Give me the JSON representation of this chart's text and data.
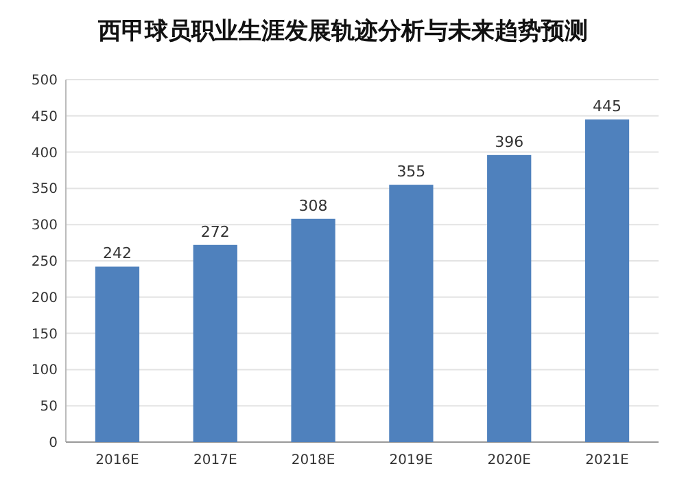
{
  "chart_data": {
    "type": "bar",
    "title": "西甲球员职业生涯发展轨迹分析与未来趋势预测",
    "categories": [
      "2016E",
      "2017E",
      "2018E",
      "2019E",
      "2020E",
      "2021E"
    ],
    "values": [
      242,
      272,
      308,
      355,
      396,
      445
    ],
    "color": "#4f81bd",
    "ylim": [
      0,
      500
    ],
    "yticks": [
      0,
      50,
      100,
      150,
      200,
      250,
      300,
      350,
      400,
      450,
      500
    ],
    "grid": "y",
    "data_labels": true
  }
}
